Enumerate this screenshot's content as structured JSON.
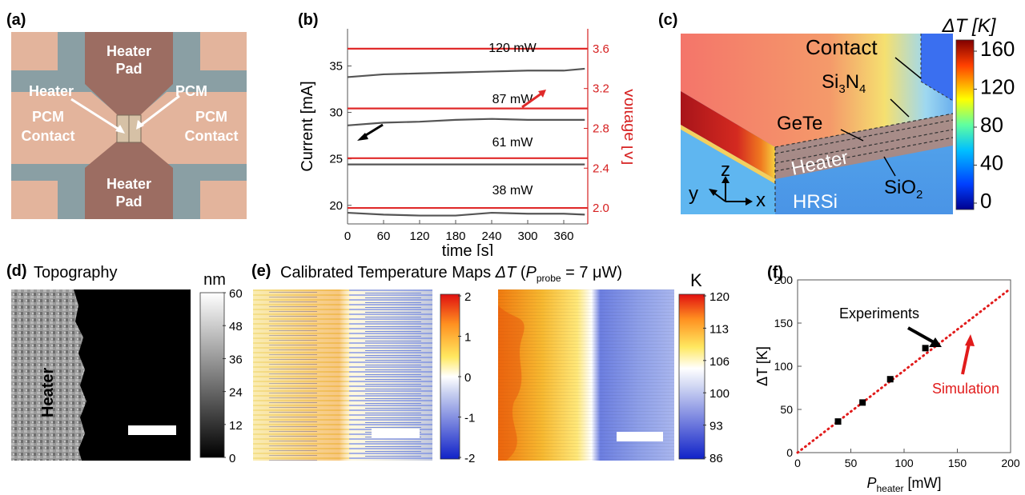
{
  "panels": {
    "a": {
      "label": "(a)",
      "top_pad": "Heater\nPad",
      "bottom_pad": "Heater\nPad",
      "left_contact": "PCM\nContact",
      "right_contact": "PCM\nContact",
      "heater_arrow": "Heater",
      "pcm_arrow": "PCM"
    },
    "b": {
      "label": "(b)",
      "power_labels": [
        "120 mW",
        "87 mW",
        "61 mW",
        "38 mW"
      ]
    },
    "c": {
      "label": "(c)",
      "colorbar_title": "ΔT [K]",
      "colorbar_ticks": [
        "160",
        "120",
        "80",
        "40",
        "0"
      ],
      "labels": {
        "contact": "Contact",
        "si3n4": "Si",
        "si3n4_sub1": "3",
        "si3n4_mid": "N",
        "si3n4_sub2": "4",
        "gete": "GeTe",
        "heater": "Heater",
        "sio2": "SiO",
        "sio2_sub": "2",
        "hrsi": "HRSi",
        "axis_z": "z",
        "axis_y": "y",
        "axis_x": "x"
      },
      "colors": {
        "hot": "#b51c1c",
        "top_surface": "#f06a5f",
        "substrate": "#5aa8e6"
      }
    },
    "d": {
      "label": "(d)",
      "title": "Topography",
      "heater_text": "Heater",
      "colorbar_unit": "nm",
      "colorbar_ticks": [
        "60",
        "48",
        "36",
        "24",
        "12",
        "0"
      ]
    },
    "e": {
      "label": "(e)",
      "title_main": "Calibrated Temperature Maps ",
      "title_dt": "ΔT",
      "title_paren_open": " (",
      "title_p": "P",
      "title_sub": "probe",
      "title_rest": " = 7 μW)",
      "colorbar1_ticks": [
        "2",
        "1",
        "0",
        "-1",
        "-2"
      ],
      "colorbar2_unit": "K",
      "colorbar2_ticks": [
        "120",
        "113",
        "106",
        "100",
        "93",
        "86"
      ]
    },
    "f": {
      "label": "(f)",
      "experiments_label": "Experiments",
      "simulation_label": "Simulation",
      "accent_red": "#e11b1b"
    }
  },
  "chart_data": [
    {
      "type": "line",
      "panel": "b",
      "xlabel": "time [s]",
      "ylabel": "Current [mA]",
      "y2label": "Voltage [V]",
      "xlim": [
        0,
        400
      ],
      "ylim": [
        18,
        39
      ],
      "y2lim": [
        1.84,
        3.8
      ],
      "x_ticks": [
        0,
        60,
        120,
        180,
        240,
        300,
        360
      ],
      "y_ticks": [
        20,
        25,
        30,
        35
      ],
      "y2_ticks": [
        "2.0",
        "2.4",
        "2.8",
        "3.2",
        "3.6"
      ],
      "current_series": [
        {
          "name": "120 mW",
          "x": [
            0,
            60,
            120,
            180,
            240,
            300,
            360,
            395
          ],
          "y": [
            33.8,
            34.1,
            34.2,
            34.3,
            34.4,
            34.5,
            34.5,
            34.7
          ]
        },
        {
          "name": "87 mW",
          "x": [
            0,
            60,
            120,
            180,
            240,
            300,
            360,
            395
          ],
          "y": [
            28.6,
            28.9,
            29.0,
            29.2,
            29.3,
            29.2,
            29.2,
            29.2
          ]
        },
        {
          "name": "61 mW",
          "x": [
            0,
            60,
            120,
            180,
            240,
            300,
            360,
            395
          ],
          "y": [
            24.4,
            24.4,
            24.4,
            24.4,
            24.4,
            24.4,
            24.4,
            24.4
          ]
        },
        {
          "name": "38 mW",
          "x": [
            0,
            60,
            120,
            180,
            240,
            300,
            360,
            395
          ],
          "y": [
            19.2,
            19.0,
            18.9,
            18.9,
            19.2,
            19.1,
            19.1,
            19.0
          ]
        }
      ],
      "voltage_series": [
        {
          "name": "120 mW",
          "value": 3.6
        },
        {
          "name": "87 mW",
          "value": 3.0
        },
        {
          "name": "61 mW",
          "value": 2.5
        },
        {
          "name": "38 mW",
          "value": 2.0
        }
      ]
    },
    {
      "type": "scatter",
      "panel": "f",
      "xlabel_main": "P",
      "xlabel_sub": "heater",
      "xlabel_unit": " [mW]",
      "ylabel": "ΔT [K]",
      "xlim": [
        0,
        200
      ],
      "ylim": [
        0,
        200
      ],
      "x_ticks": [
        0,
        50,
        100,
        150,
        200
      ],
      "y_ticks": [
        0,
        50,
        100,
        150,
        200
      ],
      "series": [
        {
          "name": "Experiments",
          "x": [
            38,
            61,
            87,
            120
          ],
          "y": [
            36,
            58,
            85,
            121
          ]
        },
        {
          "name": "Simulation",
          "x": [
            0,
            200
          ],
          "y": [
            0,
            190
          ]
        }
      ]
    }
  ]
}
